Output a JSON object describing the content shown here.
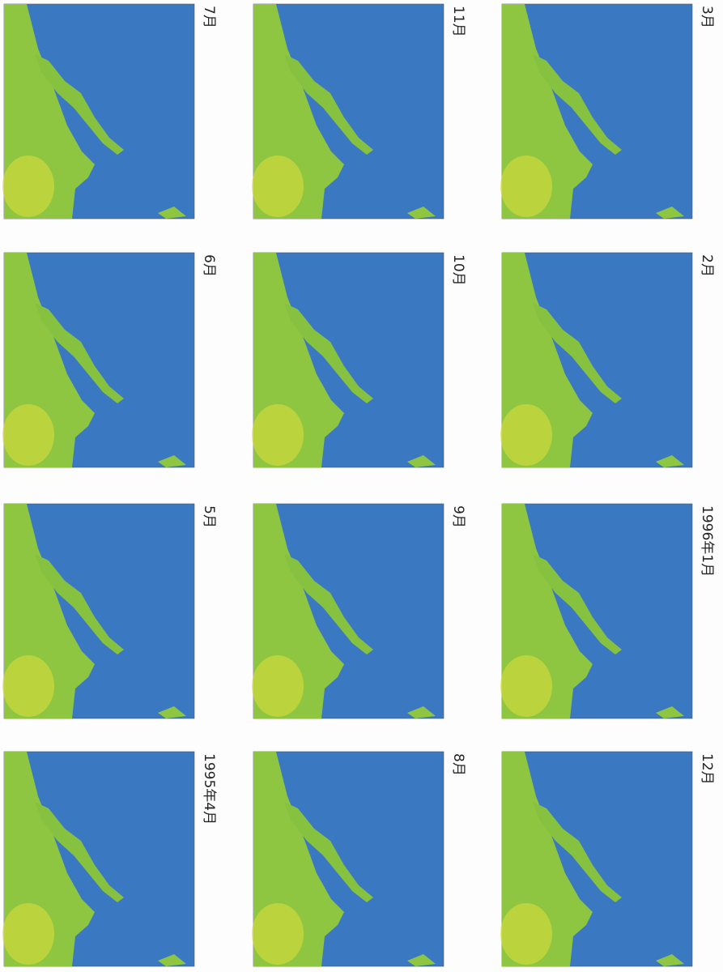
{
  "panels": [
    {
      "label": "7月"
    },
    {
      "label": "6月"
    },
    {
      "label": "5月"
    },
    {
      "label": "1995年4月"
    },
    {
      "label": "11月"
    },
    {
      "label": "10月"
    },
    {
      "label": "9月"
    },
    {
      "label": "8月"
    },
    {
      "label": "3月"
    },
    {
      "label": "2月"
    },
    {
      "label": "1996年1月"
    },
    {
      "label": "12月"
    }
  ]
}
